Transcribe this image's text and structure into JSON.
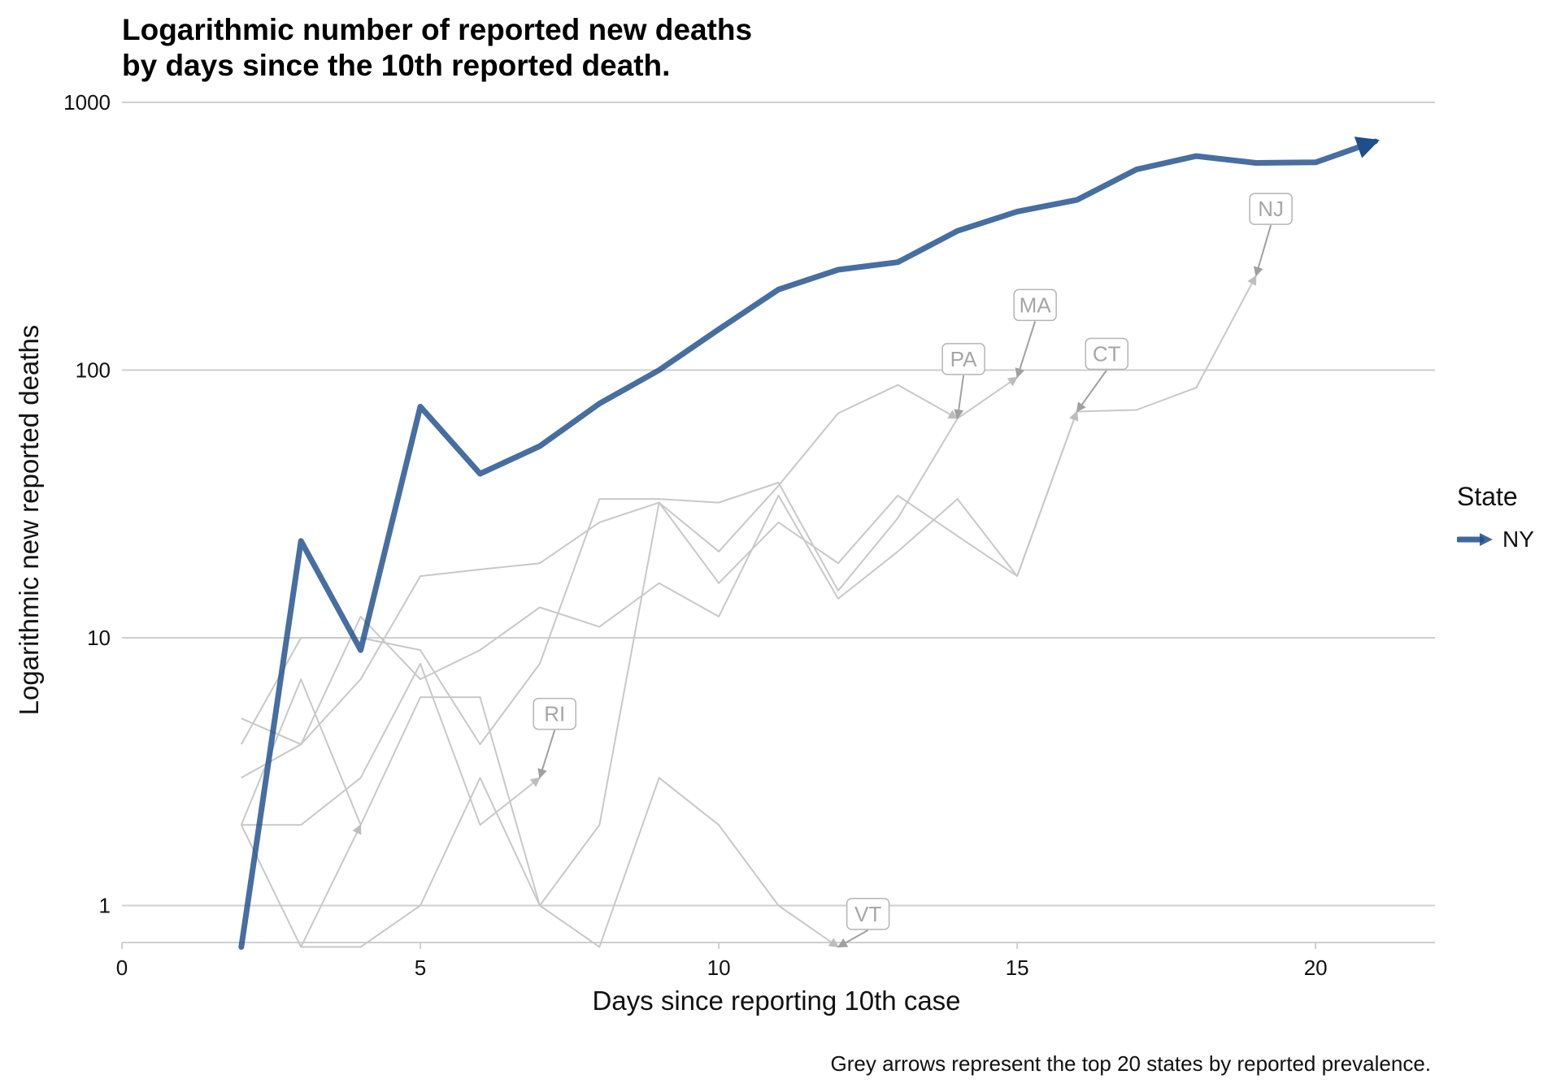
{
  "title_lines": [
    "Logarithmic number of reported new deaths",
    "by days since the 10th reported death."
  ],
  "caption": "Grey arrows represent the top 20 states by reported prevalence.",
  "chart_data": {
    "type": "line",
    "title": "Logarithmic number of reported new deaths by days since the 10th reported death.",
    "xlabel": "Days since reporting 10th case",
    "ylabel": "Logarithmic new reported deaths",
    "y_scale": "log10",
    "xlim": [
      0,
      22
    ],
    "ylim": [
      0.7,
      1000
    ],
    "x_ticks": [
      0,
      5,
      10,
      15,
      20
    ],
    "y_ticks": [
      1,
      10,
      100,
      1000
    ],
    "grid": "horizontal major only",
    "legend": {
      "title": "State",
      "position": "right",
      "entries": [
        "NY"
      ]
    },
    "highlight_color": "#1f4e8c",
    "grey_color": "#c8c8c8",
    "series": [
      {
        "name": "NY",
        "highlight": true,
        "x": [
          2,
          3,
          4,
          5,
          6,
          7,
          8,
          9,
          10,
          11,
          12,
          13,
          14,
          15,
          16,
          17,
          18,
          19,
          20,
          21
        ],
        "y": [
          0.7,
          23,
          9,
          73,
          41,
          52,
          75,
          100,
          142,
          200,
          237,
          253,
          331,
          391,
          432,
          562,
          630,
          594,
          597,
          715
        ]
      },
      {
        "name": "NJ",
        "highlight": false,
        "x": [
          2,
          3,
          4,
          5,
          6,
          7,
          8,
          9,
          10,
          11,
          12,
          13,
          14,
          15,
          16,
          17,
          18,
          19
        ],
        "y": [
          5,
          4,
          12,
          7,
          9,
          13,
          11,
          16,
          12,
          34,
          14,
          21,
          33,
          17,
          70,
          71,
          86,
          225
        ]
      },
      {
        "name": "MA",
        "highlight": false,
        "x": [
          2,
          3,
          4,
          5,
          6,
          7,
          8,
          9,
          10,
          11,
          12,
          13,
          14,
          15
        ],
        "y": [
          4,
          10,
          10,
          9,
          4,
          8,
          33,
          33,
          32,
          38,
          15,
          28,
          66,
          94
        ]
      },
      {
        "name": "CT",
        "highlight": false,
        "x": [
          2,
          3,
          4,
          5,
          6,
          7,
          8,
          9,
          10,
          11,
          12,
          13,
          14,
          15,
          16
        ],
        "y": [
          2,
          7,
          2,
          6,
          6,
          1,
          2,
          32,
          16,
          27,
          19,
          34,
          24,
          17,
          70
        ]
      },
      {
        "name": "PA",
        "highlight": false,
        "x": [
          2,
          3,
          4,
          5,
          6,
          7,
          8,
          9,
          10,
          11,
          12,
          13,
          14
        ],
        "y": [
          3,
          4,
          7,
          17,
          18,
          19,
          27,
          32,
          21,
          37,
          69,
          88,
          66
        ]
      },
      {
        "name": "RI",
        "highlight": false,
        "x": [
          2,
          3,
          4,
          5,
          6,
          7
        ],
        "y": [
          2,
          2,
          3,
          8,
          2,
          3
        ]
      },
      {
        "name": "VT",
        "highlight": false,
        "x": [
          3,
          4,
          5,
          6,
          7,
          8,
          9,
          10,
          11,
          12
        ],
        "y": [
          0.7,
          0.7,
          1,
          3,
          1,
          0.7,
          3,
          2,
          1,
          0.7
        ]
      },
      {
        "name": "",
        "highlight": false,
        "x": [
          2,
          3,
          4
        ],
        "y": [
          2,
          0.7,
          2
        ]
      }
    ],
    "annotations": [
      {
        "text": "NJ",
        "x": 19.25,
        "y": 400,
        "arrow_to": [
          19,
          225
        ]
      },
      {
        "text": "MA",
        "x": 15.3,
        "y": 175,
        "arrow_to": [
          15,
          94
        ]
      },
      {
        "text": "PA",
        "x": 14.1,
        "y": 110,
        "arrow_to": [
          14,
          66
        ]
      },
      {
        "text": "CT",
        "x": 16.5,
        "y": 115,
        "arrow_to": [
          16,
          70
        ]
      },
      {
        "text": "RI",
        "x": 7.25,
        "y": 5.2,
        "arrow_to": [
          7,
          3
        ]
      },
      {
        "text": "VT",
        "x": 12.5,
        "y": 0.93,
        "arrow_to": [
          12,
          0.7
        ]
      }
    ]
  }
}
